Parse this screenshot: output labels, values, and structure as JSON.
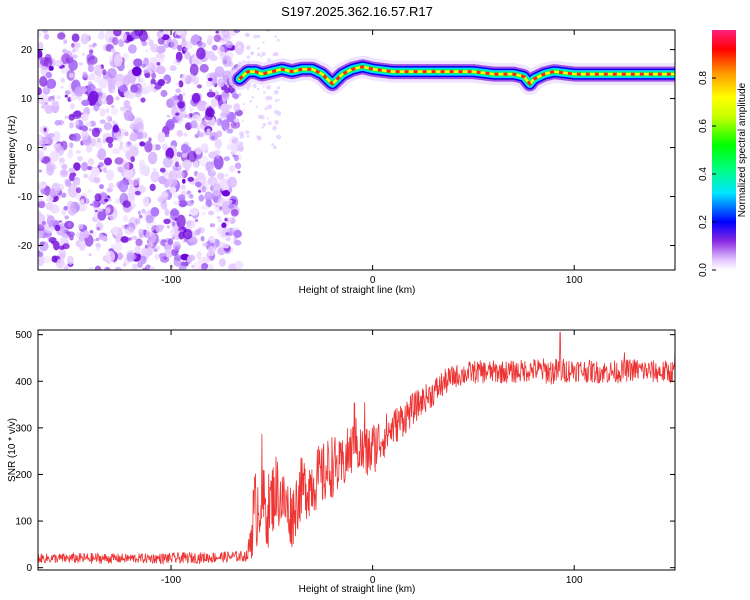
{
  "title": "S197.2025.362.16.57.R17",
  "chart_data": [
    {
      "type": "heatmap",
      "name": "spectrogram",
      "xlabel": "Height of straight line (km)",
      "ylabel": "Frequency (Hz)",
      "xlim": [
        -166,
        150
      ],
      "ylim": [
        -25,
        24
      ],
      "xticks": [
        -100,
        0,
        100
      ],
      "yticks": [
        -20,
        -10,
        0,
        10,
        20
      ],
      "noise_region_x": [
        -166,
        -66
      ],
      "trace": {
        "x": [
          -66,
          -62,
          -58,
          -55,
          -50,
          -45,
          -40,
          -35,
          -30,
          -25,
          -20,
          -15,
          -10,
          -5,
          0,
          10,
          20,
          30,
          40,
          50,
          60,
          70,
          75,
          78,
          80,
          85,
          90,
          100,
          110,
          120,
          130,
          140,
          150
        ],
        "freq": [
          14,
          15.5,
          15.5,
          15,
          15.5,
          16,
          15.5,
          16,
          16,
          15,
          13,
          15,
          16,
          16.5,
          16,
          15.5,
          15.5,
          15.5,
          15.5,
          15.5,
          15,
          15,
          14.5,
          13,
          14,
          15,
          15.5,
          15,
          15,
          15,
          15,
          15,
          15
        ]
      },
      "colorbar": {
        "label": "Normalized spectral amplitude",
        "ticks": [
          0.0,
          0.2,
          0.4,
          0.6,
          0.8
        ],
        "tick_labels": [
          "0.0",
          "0.2",
          "0.4",
          "0.6",
          "0.8"
        ],
        "range": [
          0,
          1
        ]
      }
    },
    {
      "type": "line",
      "name": "snr",
      "xlabel": "Height of straight line (km)",
      "ylabel": "SNR (10 * v/v)",
      "xlim": [
        -166,
        150
      ],
      "ylim": [
        -5,
        510
      ],
      "xticks": [
        -100,
        0,
        100
      ],
      "yticks": [
        0,
        100,
        200,
        300,
        400,
        500
      ],
      "color": "#ee3333",
      "envelope": {
        "x": [
          -166,
          -140,
          -120,
          -100,
          -80,
          -62,
          -59,
          -56,
          -52,
          -48,
          -44,
          -40,
          -36,
          -32,
          -28,
          -24,
          -20,
          -16,
          -12,
          -8,
          -4,
          0,
          5,
          10,
          15,
          20,
          25,
          30,
          35,
          40,
          50,
          60,
          70,
          80,
          90,
          100,
          110,
          120,
          130,
          140,
          150
        ],
        "mean": [
          20,
          20,
          20,
          20,
          22,
          25,
          110,
          150,
          120,
          170,
          140,
          110,
          165,
          175,
          190,
          200,
          220,
          210,
          245,
          265,
          240,
          255,
          280,
          300,
          320,
          340,
          360,
          375,
          395,
          410,
          420,
          420,
          420,
          425,
          420,
          425,
          420,
          420,
          425,
          420,
          420
        ],
        "spread": [
          10,
          12,
          10,
          12,
          12,
          12,
          90,
          90,
          80,
          80,
          70,
          70,
          70,
          70,
          70,
          70,
          70,
          60,
          60,
          60,
          60,
          60,
          50,
          40,
          40,
          35,
          30,
          30,
          30,
          25,
          25,
          25,
          25,
          25,
          30,
          25,
          25,
          25,
          25,
          25,
          25
        ],
        "peaks": [
          [
            -55,
            287
          ],
          [
            -9,
            353
          ],
          [
            -4,
            355
          ],
          [
            93,
            505
          ],
          [
            125,
            462
          ],
          [
            150,
            470
          ]
        ]
      }
    }
  ]
}
